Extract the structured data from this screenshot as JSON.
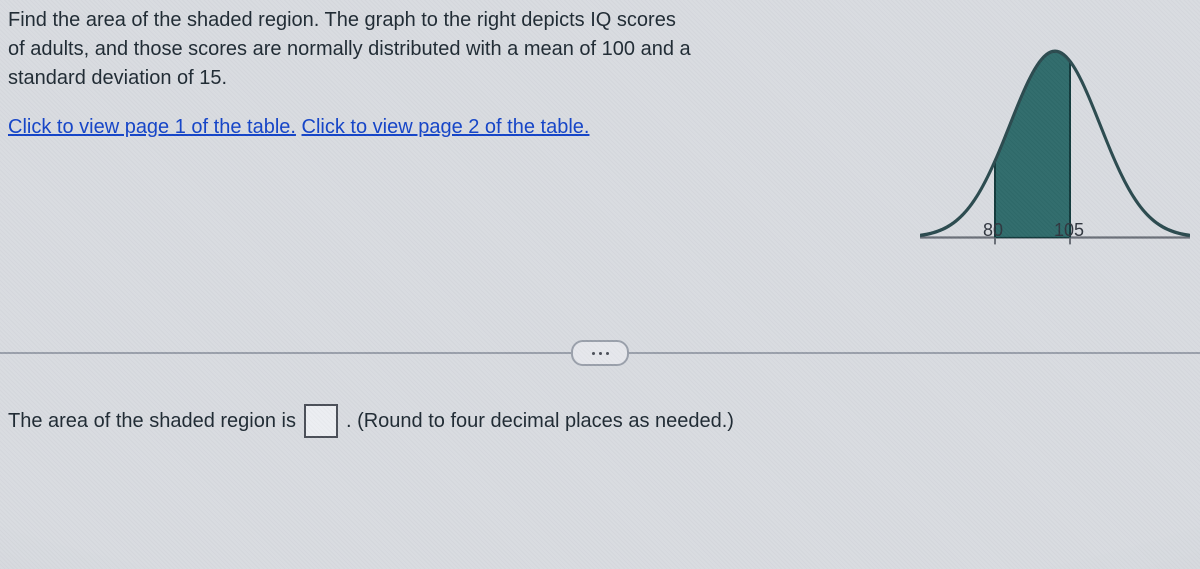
{
  "problem": {
    "line1": "Find the area of the shaded region. The graph to the right depicts IQ scores",
    "line2": "of adults, and those scores are normally distributed with a mean of 100 and a",
    "line3": "standard deviation of 15."
  },
  "links": {
    "page1": "Click to view page 1 of the table.",
    "page2": "Click to view page 2 of the table."
  },
  "answer": {
    "prefix": "The area of the shaded region is",
    "suffix": ". (Round to four decimal places as needed.)"
  },
  "chart": {
    "type": "normal-curve",
    "mean": 100,
    "sd": 15,
    "shaded_from": 80,
    "shaded_to": 105,
    "curve_stroke": "#2b4a4f",
    "curve_stroke_width": 3,
    "shaded_fill": "#2f6b6b",
    "shaded_edge": "#123a3c",
    "baseline_color": "#6a6f78",
    "background_color": "#d8dbe0",
    "tick_labels": [
      "80",
      "105"
    ],
    "tick_fontsize": 18,
    "x_domain": [
      55,
      145
    ],
    "aspect_w": 270,
    "aspect_h": 180
  },
  "colors": {
    "page_bg": "#d8dbe0",
    "text": "#1f2a33",
    "link": "#1444c8",
    "divider": "#9aa0ab"
  }
}
